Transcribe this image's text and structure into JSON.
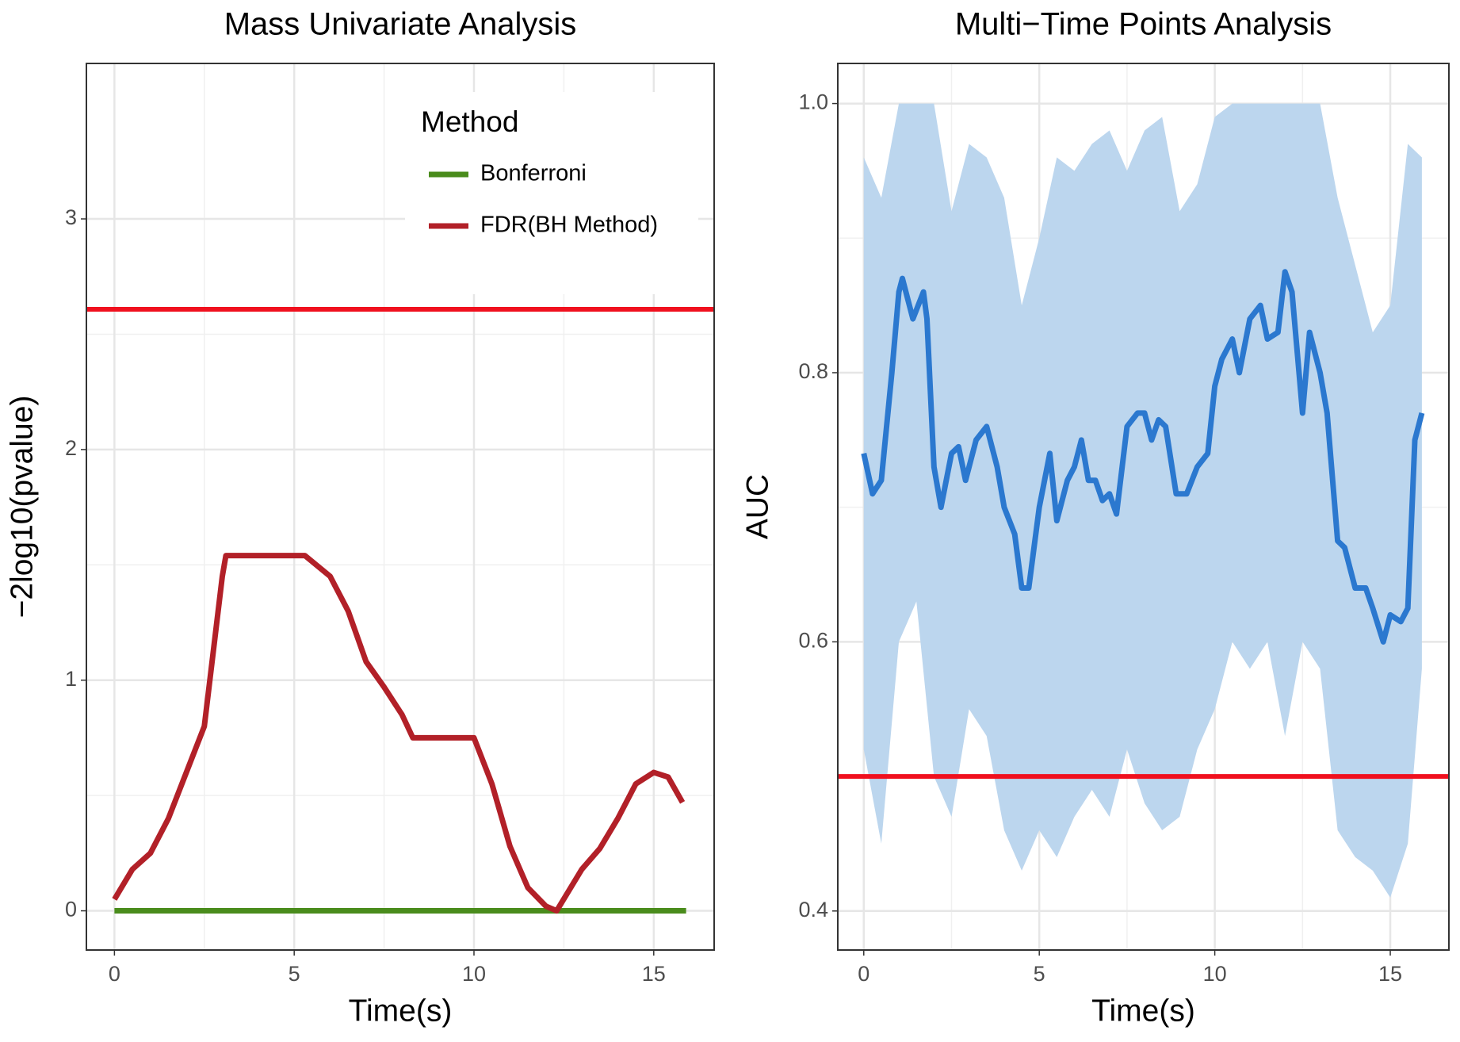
{
  "chart_data": [
    {
      "type": "line",
      "title": "Mass Univariate Analysis",
      "xlabel": "Time(s)",
      "ylabel": "−2log10(pvalue)",
      "xlim": [
        -0.78,
        16.68
      ],
      "ylim": [
        -0.17,
        3.674
      ],
      "xticks": [
        0,
        5,
        10,
        15
      ],
      "yticks": [
        0,
        1,
        2,
        3
      ],
      "grid": true,
      "legend": {
        "title": "Method",
        "position": "top-right"
      },
      "hline": {
        "value": 2.608,
        "color": "#f0101e"
      },
      "series": [
        {
          "name": "Bonferroni",
          "color": "#4a8c1c",
          "x": [
            0,
            15.9
          ],
          "values": [
            0,
            0
          ]
        },
        {
          "name": "FDR(BH Method)",
          "color": "#b22028",
          "x": [
            0,
            0.5,
            1,
            1.5,
            2,
            2.5,
            3,
            3.1,
            5.3,
            6,
            6.5,
            7,
            7.5,
            8,
            8.3,
            10,
            10.5,
            11,
            11.5,
            12,
            12.3,
            13,
            13.5,
            14,
            14.5,
            15,
            15.4,
            15.8
          ],
          "values": [
            0.05,
            0.18,
            0.25,
            0.4,
            0.6,
            0.8,
            1.45,
            1.54,
            1.54,
            1.45,
            1.3,
            1.08,
            0.97,
            0.85,
            0.75,
            0.75,
            0.55,
            0.28,
            0.1,
            0.02,
            0.0,
            0.18,
            0.27,
            0.4,
            0.55,
            0.6,
            0.58,
            0.47
          ]
        }
      ]
    },
    {
      "type": "line",
      "title": "Multi−Time Points Analysis",
      "xlabel": "Time(s)",
      "ylabel": "AUC",
      "xlim": [
        -0.74,
        16.67
      ],
      "ylim": [
        0.371,
        1.0298
      ],
      "xticks": [
        0,
        5,
        10,
        15
      ],
      "yticks": [
        0.4,
        0.6,
        0.8,
        {
          "value": 1,
          "label": "1.0"
        }
      ],
      "grid": true,
      "hline": {
        "value": 0.5,
        "color": "#f0101e"
      },
      "band": {
        "color": "#bcd6ee",
        "x": [
          0,
          0.5,
          1,
          1.5,
          2,
          2.5,
          3,
          3.5,
          4,
          4.5,
          5,
          5.5,
          6,
          6.5,
          7,
          7.5,
          8,
          8.5,
          9,
          9.5,
          10,
          10.5,
          11,
          11.5,
          12,
          12.5,
          13,
          13.5,
          14,
          14.5,
          15,
          15.5,
          15.9
        ],
        "upper": [
          0.96,
          0.93,
          1.0,
          1.0,
          1.0,
          0.92,
          0.97,
          0.96,
          0.93,
          0.85,
          0.9,
          0.96,
          0.95,
          0.97,
          0.98,
          0.95,
          0.98,
          0.99,
          0.92,
          0.94,
          0.99,
          1.0,
          1.0,
          1.0,
          1.0,
          1.0,
          1.0,
          0.93,
          0.88,
          0.83,
          0.85,
          0.97,
          0.96
        ],
        "lower": [
          0.52,
          0.45,
          0.6,
          0.63,
          0.5,
          0.47,
          0.55,
          0.53,
          0.46,
          0.43,
          0.46,
          0.44,
          0.47,
          0.49,
          0.47,
          0.52,
          0.48,
          0.46,
          0.47,
          0.52,
          0.55,
          0.6,
          0.58,
          0.6,
          0.53,
          0.6,
          0.58,
          0.46,
          0.44,
          0.43,
          0.41,
          0.45,
          0.58
        ]
      },
      "series": [
        {
          "color": "#2b78cf",
          "x": [
            0,
            0.25,
            0.5,
            0.8,
            1,
            1.1,
            1.4,
            1.7,
            1.8,
            2,
            2.2,
            2.5,
            2.7,
            2.9,
            3.2,
            3.5,
            3.8,
            4,
            4.3,
            4.5,
            4.7,
            5,
            5.3,
            5.5,
            5.8,
            6,
            6.2,
            6.4,
            6.6,
            6.8,
            7,
            7.2,
            7.5,
            7.8,
            8,
            8.2,
            8.4,
            8.6,
            8.9,
            9.2,
            9.5,
            9.8,
            10,
            10.2,
            10.5,
            10.7,
            11,
            11.3,
            11.5,
            11.8,
            12,
            12.2,
            12.4,
            12.5,
            12.7,
            13,
            13.2,
            13.5,
            13.7,
            14,
            14.3,
            14.5,
            14.8,
            15,
            15.3,
            15.5,
            15.7,
            15.9
          ],
          "values": [
            0.74,
            0.71,
            0.72,
            0.8,
            0.86,
            0.87,
            0.84,
            0.86,
            0.84,
            0.73,
            0.7,
            0.74,
            0.745,
            0.72,
            0.75,
            0.76,
            0.73,
            0.7,
            0.68,
            0.64,
            0.64,
            0.7,
            0.74,
            0.69,
            0.72,
            0.73,
            0.75,
            0.72,
            0.72,
            0.705,
            0.71,
            0.695,
            0.76,
            0.77,
            0.77,
            0.75,
            0.765,
            0.76,
            0.71,
            0.71,
            0.73,
            0.74,
            0.79,
            0.81,
            0.825,
            0.8,
            0.84,
            0.85,
            0.825,
            0.83,
            0.875,
            0.86,
            0.8,
            0.77,
            0.83,
            0.8,
            0.77,
            0.675,
            0.67,
            0.64,
            0.64,
            0.625,
            0.6,
            0.62,
            0.615,
            0.625,
            0.75,
            0.77
          ]
        }
      ]
    }
  ]
}
